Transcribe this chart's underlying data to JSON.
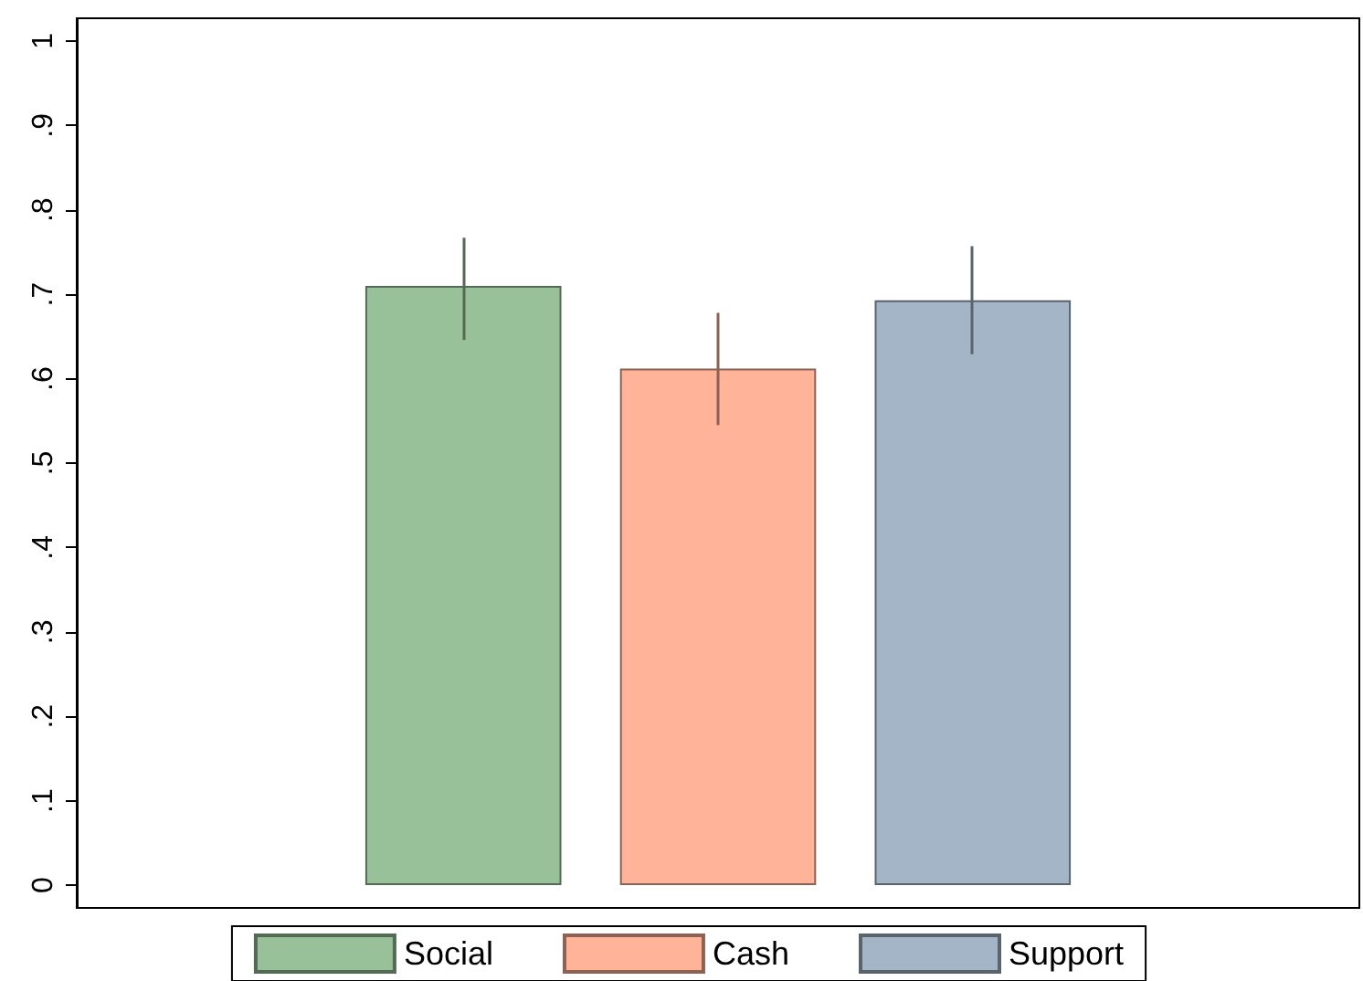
{
  "chart_data": {
    "type": "bar",
    "categories": [
      null
    ],
    "series": [
      {
        "name": "Social",
        "color": "#99c199",
        "values": [
          0.71
        ],
        "errors": [
          [
            0.646,
            0.767
          ]
        ]
      },
      {
        "name": "Cash",
        "color": "#ffb399",
        "values": [
          0.612
        ],
        "errors": [
          [
            0.545,
            0.678
          ]
        ]
      },
      {
        "name": "Support",
        "color": "#a3b5c7",
        "values": [
          0.693
        ],
        "errors": [
          [
            0.629,
            0.757
          ]
        ]
      }
    ],
    "ylim": [
      -0.027,
      1.027
    ],
    "yticks": [
      0,
      {
        "value": 0.1,
        "label": ".1"
      },
      {
        "value": 0.2,
        "label": ".2"
      },
      {
        "value": 0.3,
        "label": ".3"
      },
      {
        "value": 0.4,
        "label": ".4"
      },
      {
        "value": 0.5,
        "label": ".5"
      },
      {
        "value": 0.6,
        "label": ".6"
      },
      {
        "value": 0.7,
        "label": ".7"
      },
      {
        "value": 0.8,
        "label": ".8"
      },
      {
        "value": 0.9,
        "label": ".9"
      },
      1
    ],
    "grid": false,
    "legend": "bottom"
  }
}
